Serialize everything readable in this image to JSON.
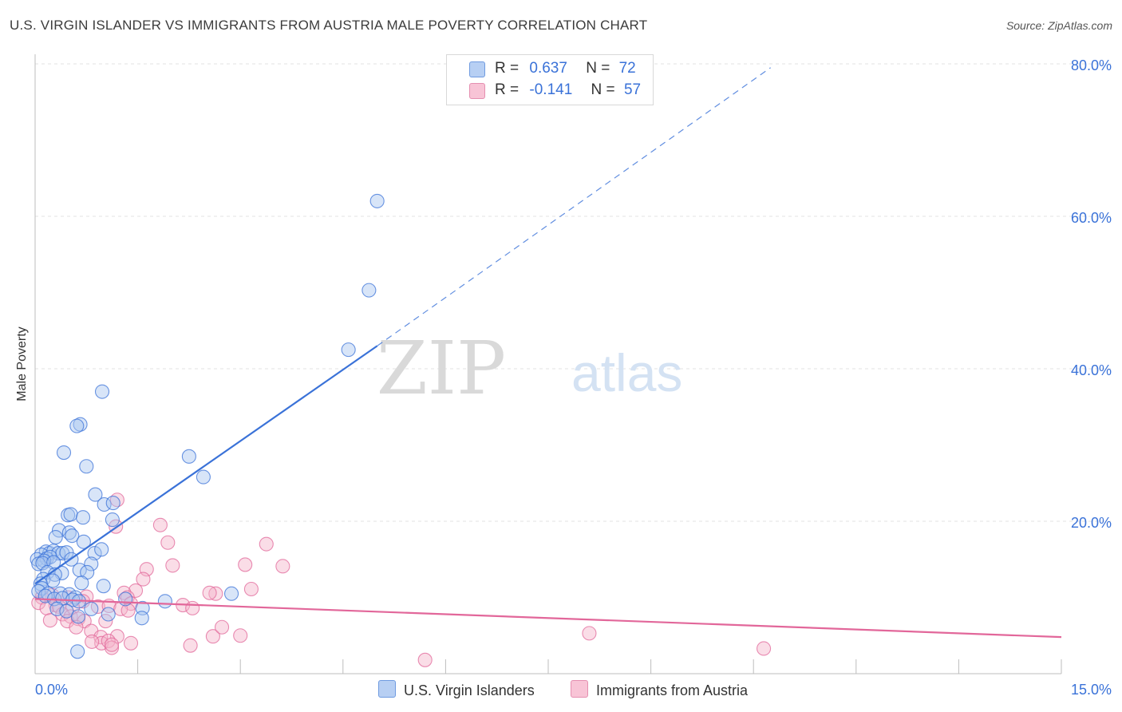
{
  "title": "U.S. VIRGIN ISLANDER VS IMMIGRANTS FROM AUSTRIA MALE POVERTY CORRELATION CHART",
  "source": "Source: ZipAtlas.com",
  "watermark": {
    "zip": "ZIP",
    "atlas": "atlas"
  },
  "colors": {
    "blue": "#3a72d8",
    "blue_fill": "#a9c6f0",
    "pink": "#e2679a",
    "pink_fill": "#f4b3c9",
    "grid": "#e3e3e3",
    "axis_label": "#3a72d8"
  },
  "legend": {
    "r_label": "R =",
    "n_label": "N =",
    "series1": {
      "r": "0.637",
      "n": "72"
    },
    "series2": {
      "r": "-0.141",
      "n": "57"
    }
  },
  "chart_data": {
    "type": "scatter",
    "title": "U.S. VIRGIN ISLANDER VS IMMIGRANTS FROM AUSTRIA MALE POVERTY CORRELATION CHART",
    "xlabel": "",
    "ylabel": "Male Poverty",
    "xlim": [
      0,
      15
    ],
    "ylim": [
      0,
      80
    ],
    "x_tick_labels": [
      "0.0%",
      "15.0%"
    ],
    "y_ticks": [
      20,
      40,
      60,
      80
    ],
    "y_tick_labels": [
      "20.0%",
      "40.0%",
      "60.0%",
      "80.0%"
    ],
    "series": [
      {
        "name": "U.S. Virgin Islanders",
        "color": "#3a72d8",
        "r": 0.637,
        "n": 72,
        "trend": {
          "x0": 0.0,
          "y0": 11.8,
          "x1": 5.0,
          "y1": 43.0,
          "dash_x1": 10.75,
          "dash_y1": 79.5
        },
        "points": [
          [
            5.0,
            62.0
          ],
          [
            4.88,
            50.3
          ],
          [
            4.58,
            42.5
          ],
          [
            0.98,
            37.0
          ],
          [
            0.66,
            32.7
          ],
          [
            0.61,
            32.5
          ],
          [
            0.42,
            29.0
          ],
          [
            0.75,
            27.2
          ],
          [
            2.25,
            28.5
          ],
          [
            2.46,
            25.8
          ],
          [
            0.88,
            23.5
          ],
          [
            1.01,
            22.2
          ],
          [
            1.14,
            22.4
          ],
          [
            0.48,
            20.8
          ],
          [
            0.52,
            20.9
          ],
          [
            0.7,
            20.5
          ],
          [
            1.13,
            20.2
          ],
          [
            0.35,
            18.8
          ],
          [
            0.5,
            18.5
          ],
          [
            0.54,
            18.1
          ],
          [
            0.3,
            17.9
          ],
          [
            0.71,
            17.3
          ],
          [
            0.16,
            16.0
          ],
          [
            0.21,
            15.8
          ],
          [
            0.27,
            16.1
          ],
          [
            0.34,
            15.8
          ],
          [
            0.4,
            15.8
          ],
          [
            0.46,
            15.9
          ],
          [
            0.09,
            15.6
          ],
          [
            0.87,
            15.8
          ],
          [
            0.97,
            16.3
          ],
          [
            0.03,
            15.0
          ],
          [
            0.17,
            15.1
          ],
          [
            0.22,
            15.3
          ],
          [
            0.13,
            14.8
          ],
          [
            0.53,
            15.0
          ],
          [
            0.05,
            14.4
          ],
          [
            0.11,
            14.5
          ],
          [
            0.27,
            14.6
          ],
          [
            0.82,
            14.4
          ],
          [
            0.65,
            13.6
          ],
          [
            0.76,
            13.3
          ],
          [
            0.39,
            13.2
          ],
          [
            0.18,
            13.3
          ],
          [
            0.29,
            13.0
          ],
          [
            0.12,
            12.4
          ],
          [
            0.26,
            12.2
          ],
          [
            0.08,
            11.8
          ],
          [
            0.68,
            11.9
          ],
          [
            1.0,
            11.5
          ],
          [
            0.1,
            11.2
          ],
          [
            0.05,
            10.8
          ],
          [
            0.19,
            10.5
          ],
          [
            0.37,
            10.5
          ],
          [
            0.5,
            10.4
          ],
          [
            0.59,
            10.0
          ],
          [
            0.15,
            10.2
          ],
          [
            0.28,
            9.8
          ],
          [
            0.4,
            9.9
          ],
          [
            0.55,
            9.7
          ],
          [
            0.64,
            9.5
          ],
          [
            1.32,
            9.8
          ],
          [
            1.9,
            9.5
          ],
          [
            2.87,
            10.5
          ],
          [
            0.32,
            8.5
          ],
          [
            0.46,
            8.2
          ],
          [
            0.82,
            8.5
          ],
          [
            1.57,
            8.6
          ],
          [
            1.07,
            7.8
          ],
          [
            0.63,
            7.5
          ],
          [
            1.56,
            7.3
          ],
          [
            0.62,
            2.9
          ]
        ]
      },
      {
        "name": "Immigrants from Austria",
        "color": "#e2679a",
        "r": -0.141,
        "n": 57,
        "trend": {
          "x0": 0.0,
          "y0": 9.8,
          "x1": 15.0,
          "y1": 4.8
        },
        "points": [
          [
            1.2,
            22.8
          ],
          [
            1.18,
            19.3
          ],
          [
            1.83,
            19.5
          ],
          [
            1.94,
            17.2
          ],
          [
            3.38,
            17.0
          ],
          [
            1.63,
            13.7
          ],
          [
            2.01,
            14.2
          ],
          [
            3.07,
            14.3
          ],
          [
            3.62,
            14.1
          ],
          [
            1.58,
            12.4
          ],
          [
            2.64,
            10.5
          ],
          [
            2.55,
            10.6
          ],
          [
            3.16,
            11.1
          ],
          [
            1.47,
            10.9
          ],
          [
            1.3,
            10.6
          ],
          [
            1.35,
            10.0
          ],
          [
            0.25,
            10.3
          ],
          [
            0.1,
            10.0
          ],
          [
            0.48,
            10.0
          ],
          [
            0.75,
            10.1
          ],
          [
            0.7,
            9.5
          ],
          [
            0.3,
            9.0
          ],
          [
            0.05,
            9.3
          ],
          [
            0.17,
            8.6
          ],
          [
            0.35,
            8.8
          ],
          [
            0.55,
            8.7
          ],
          [
            0.92,
            8.8
          ],
          [
            1.08,
            8.9
          ],
          [
            1.4,
            9.2
          ],
          [
            2.16,
            9.0
          ],
          [
            2.3,
            8.6
          ],
          [
            1.25,
            8.5
          ],
          [
            1.36,
            8.3
          ],
          [
            0.4,
            7.8
          ],
          [
            0.52,
            7.5
          ],
          [
            0.22,
            7.0
          ],
          [
            0.47,
            6.9
          ],
          [
            0.63,
            7.2
          ],
          [
            0.72,
            6.9
          ],
          [
            1.03,
            6.9
          ],
          [
            0.6,
            6.1
          ],
          [
            0.82,
            5.6
          ],
          [
            1.2,
            4.9
          ],
          [
            0.96,
            4.8
          ],
          [
            0.97,
            4.0
          ],
          [
            0.83,
            4.2
          ],
          [
            1.07,
            4.3
          ],
          [
            1.4,
            4.0
          ],
          [
            1.12,
            3.4
          ],
          [
            2.27,
            3.7
          ],
          [
            2.6,
            4.9
          ],
          [
            3.0,
            5.0
          ],
          [
            2.73,
            6.1
          ],
          [
            8.1,
            5.3
          ],
          [
            5.7,
            1.8
          ],
          [
            10.65,
            3.3
          ],
          [
            1.12,
            3.8
          ]
        ]
      }
    ]
  }
}
